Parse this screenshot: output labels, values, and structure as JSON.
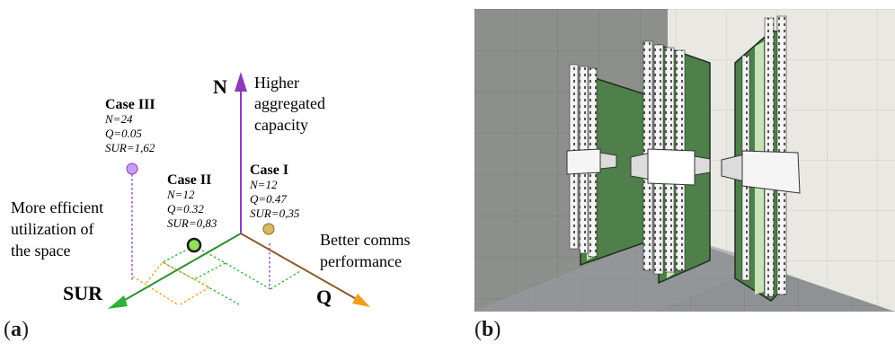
{
  "panel_a": {
    "label_open": "(",
    "label_letter": "a",
    "label_close": ")",
    "axes": {
      "n": {
        "label": "N",
        "caption": [
          "Higher",
          "aggregated",
          "capacity"
        ],
        "color": "#8b3bb8"
      },
      "sur": {
        "label": "SUR",
        "caption": [
          "More efficient",
          "utilization of",
          "the space"
        ],
        "color": "#2f8f2f"
      },
      "q": {
        "label": "Q",
        "caption": [
          "Better comms",
          "performance"
        ],
        "color": "#f39a1a"
      }
    },
    "cases": [
      {
        "name": "Case III",
        "n_text": "N=24",
        "q_text": "Q=0.05",
        "sur_text": "SUR=1,62",
        "color": "#c79ef2",
        "N": 24,
        "Q": 0.05,
        "SUR": 1.62
      },
      {
        "name": "Case II",
        "n_text": "N=12",
        "q_text": "Q=0.32",
        "sur_text": "SUR=0,83",
        "color": "#8fe05a",
        "N": 12,
        "Q": 0.32,
        "SUR": 0.83
      },
      {
        "name": "Case I",
        "n_text": "N=12",
        "q_text": "Q=0.47",
        "sur_text": "SUR=0,35",
        "color": "#d9b864",
        "N": 12,
        "Q": 0.47,
        "SUR": 0.35
      }
    ]
  },
  "panel_b": {
    "label_open": "(",
    "label_letter": "b",
    "label_close": ")",
    "colors": {
      "wall_left": "#8c8f8c",
      "wall_right": "#e9e8e2",
      "floor": "#8f9294",
      "panel": "#4f7f4a",
      "rack": "#f2f2f2"
    }
  }
}
